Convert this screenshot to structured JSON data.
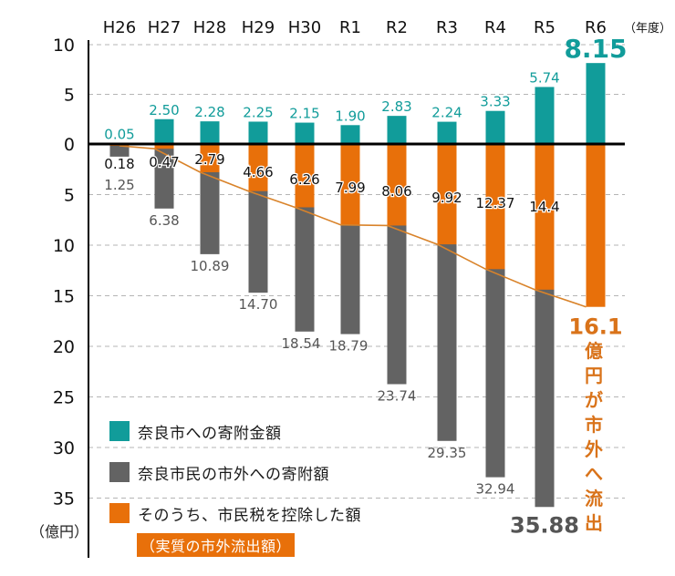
{
  "chart_data": {
    "type": "bar",
    "title": "",
    "xlabel": "（年度）",
    "ylabel": "（億円）",
    "categories": [
      "H26",
      "H27",
      "H28",
      "H29",
      "H30",
      "R1",
      "R2",
      "R3",
      "R4",
      "R5",
      "R6"
    ],
    "y_ticks_up": [
      "10",
      "5",
      "0"
    ],
    "y_ticks_down": [
      "5",
      "10",
      "15",
      "20",
      "25",
      "30",
      "35"
    ],
    "ylim": [
      -36,
      10
    ],
    "grid": true,
    "series": [
      {
        "name": "奈良市への寄附金額",
        "direction": "up",
        "color": "#119c9a",
        "values": [
          0.05,
          2.5,
          2.28,
          2.25,
          2.15,
          1.9,
          2.83,
          2.24,
          3.33,
          5.74,
          8.15
        ],
        "labels": [
          "0.05",
          "2.50",
          "2.28",
          "2.25",
          "2.15",
          "1.90",
          "2.83",
          "2.24",
          "3.33",
          "5.74",
          "8.15"
        ]
      },
      {
        "name": "奈良市民の市外への寄附額",
        "direction": "down",
        "color": "#636363",
        "values": [
          1.25,
          6.38,
          10.89,
          14.7,
          18.54,
          18.79,
          23.74,
          29.35,
          32.94,
          35.88,
          null
        ],
        "labels": [
          "1.25",
          "6.38",
          "10.89",
          "14.70",
          "18.54",
          "18.79",
          "23.74",
          "29.35",
          "32.94",
          "35.88",
          ""
        ]
      },
      {
        "name": "そのうち、市民税を控除した額",
        "direction": "down",
        "color": "#e8700a",
        "values": [
          0.18,
          0.47,
          2.79,
          4.66,
          6.26,
          7.99,
          8.06,
          9.92,
          12.37,
          14.4,
          16.1
        ],
        "labels": [
          "0.18",
          "0.47",
          "2.79",
          "4.66",
          "6.26",
          "7.99",
          "8.06",
          "9.92",
          "12.37",
          "14.4",
          "16.1"
        ]
      }
    ],
    "legend": {
      "placement": "bottom-left",
      "items": [
        {
          "label": "奈良市への寄附金額",
          "color": "#119c9a"
        },
        {
          "label": "奈良市民の市外への寄附額",
          "color": "#636363"
        },
        {
          "label": "そのうち、市民税を控除した額",
          "color": "#e8700a"
        }
      ],
      "note": "（実質の市外流出額）"
    },
    "annotation": {
      "value": "16.1",
      "text_chars": [
        "億",
        "円",
        "が",
        "市",
        "外",
        "へ",
        "流",
        "出"
      ],
      "color": "#d9731a"
    }
  }
}
